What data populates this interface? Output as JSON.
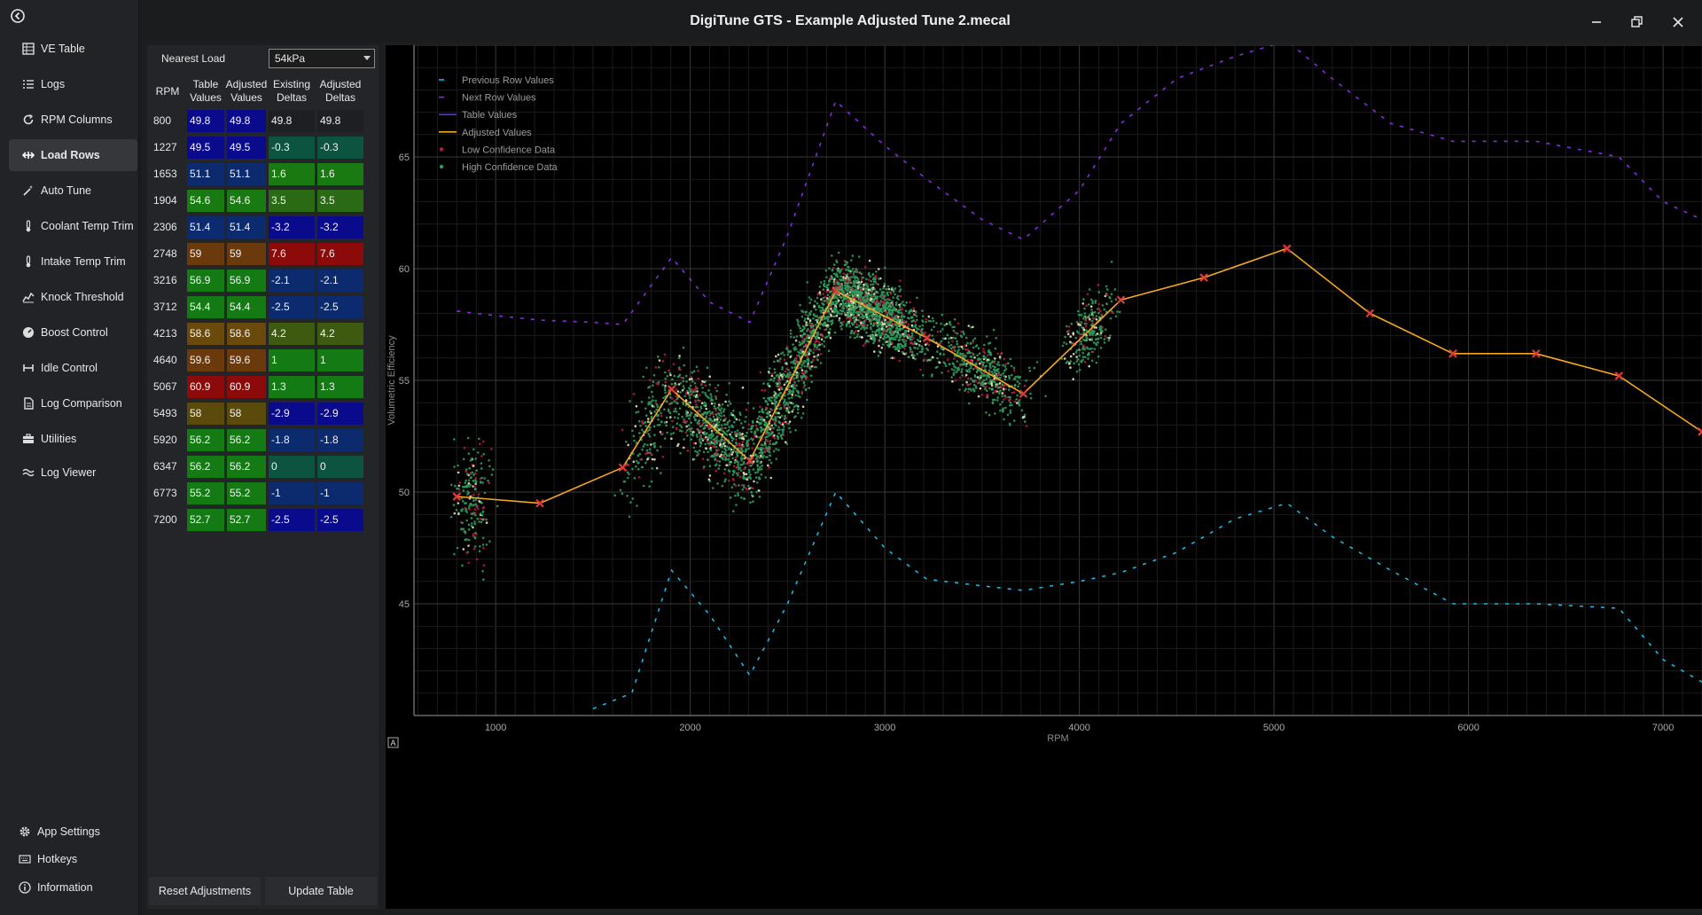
{
  "window": {
    "title": "DigiTune GTS - Example Adjusted Tune 2.mecal"
  },
  "sidebar": {
    "items": [
      {
        "label": "VE Table",
        "icon": "table-icon"
      },
      {
        "label": "Logs",
        "icon": "list-icon"
      },
      {
        "label": "RPM Columns",
        "icon": "refresh-icon"
      },
      {
        "label": "Load Rows",
        "icon": "arrows-horizontal-icon"
      },
      {
        "label": "Auto Tune",
        "icon": "magic-wand-icon"
      },
      {
        "label": "Coolant Temp Trim",
        "icon": "thermometer-icon"
      },
      {
        "label": "Intake Temp Trim",
        "icon": "thermometer-icon"
      },
      {
        "label": "Knock Threshold",
        "icon": "chart-line-icon"
      },
      {
        "label": "Boost Control",
        "icon": "gauge-icon"
      },
      {
        "label": "Idle Control",
        "icon": "idle-icon"
      },
      {
        "label": "Log Comparison",
        "icon": "document-icon"
      },
      {
        "label": "Utilities",
        "icon": "toolbox-icon"
      },
      {
        "label": "Log Viewer",
        "icon": "wave-icon"
      }
    ],
    "active": "Load Rows",
    "footer": [
      {
        "label": "App Settings",
        "icon": "gear-icon"
      },
      {
        "label": "Hotkeys",
        "icon": "keyboard-icon"
      },
      {
        "label": "Information",
        "icon": "info-icon"
      }
    ]
  },
  "panel": {
    "nearest_load_label": "Nearest Load",
    "nearest_load_value": "54kPa",
    "headers": [
      "RPM",
      "Table Values",
      "Adjusted Values",
      "Existing Deltas",
      "Adjusted Deltas"
    ],
    "rows": [
      {
        "rpm": "800",
        "table": "49.8",
        "adjusted": "49.8",
        "existing": "49.8",
        "adj_delta": "49.8"
      },
      {
        "rpm": "1227",
        "table": "49.5",
        "adjusted": "49.5",
        "existing": "-0.3",
        "adj_delta": "-0.3"
      },
      {
        "rpm": "1653",
        "table": "51.1",
        "adjusted": "51.1",
        "existing": "1.6",
        "adj_delta": "1.6"
      },
      {
        "rpm": "1904",
        "table": "54.6",
        "adjusted": "54.6",
        "existing": "3.5",
        "adj_delta": "3.5"
      },
      {
        "rpm": "2306",
        "table": "51.4",
        "adjusted": "51.4",
        "existing": "-3.2",
        "adj_delta": "-3.2"
      },
      {
        "rpm": "2748",
        "table": "59",
        "adjusted": "59",
        "existing": "7.6",
        "adj_delta": "7.6"
      },
      {
        "rpm": "3216",
        "table": "56.9",
        "adjusted": "56.9",
        "existing": "-2.1",
        "adj_delta": "-2.1"
      },
      {
        "rpm": "3712",
        "table": "54.4",
        "adjusted": "54.4",
        "existing": "-2.5",
        "adj_delta": "-2.5"
      },
      {
        "rpm": "4213",
        "table": "58.6",
        "adjusted": "58.6",
        "existing": "4.2",
        "adj_delta": "4.2"
      },
      {
        "rpm": "4640",
        "table": "59.6",
        "adjusted": "59.6",
        "existing": "1",
        "adj_delta": "1"
      },
      {
        "rpm": "5067",
        "table": "60.9",
        "adjusted": "60.9",
        "existing": "1.3",
        "adj_delta": "1.3"
      },
      {
        "rpm": "5493",
        "table": "58",
        "adjusted": "58",
        "existing": "-2.9",
        "adj_delta": "-2.9"
      },
      {
        "rpm": "5920",
        "table": "56.2",
        "adjusted": "56.2",
        "existing": "-1.8",
        "adj_delta": "-1.8"
      },
      {
        "rpm": "6347",
        "table": "56.2",
        "adjusted": "56.2",
        "existing": "0",
        "adj_delta": "0"
      },
      {
        "rpm": "6773",
        "table": "55.2",
        "adjusted": "55.2",
        "existing": "-1",
        "adj_delta": "-1"
      },
      {
        "rpm": "7200",
        "table": "52.7",
        "adjusted": "52.7",
        "existing": "-2.5",
        "adj_delta": "-2.5"
      }
    ],
    "value_colors": [
      "#0a0a8c",
      "#0a0a8c",
      "#0c2a6e",
      "#1a7a12",
      "#0c2a6e",
      "#6a3a0c",
      "#137a14",
      "#137a14",
      "#6a4a0c",
      "#6a3a0c",
      "#8c0a0a",
      "#5a4a0c",
      "#137a14",
      "#137a14",
      "#137a14",
      "#137a14"
    ],
    "delta_colors": [
      "#1e1f22",
      "#0d5440",
      "#1a7a12",
      "#2a6a14",
      "#0a0a8c",
      "#8c0a0a",
      "#0c2a6e",
      "#0c2a6e",
      "#3e5a10",
      "#137a14",
      "#137a14",
      "#0a0a8c",
      "#0c2a6e",
      "#0d5440",
      "#0c2a6e",
      "#0a0a8c"
    ],
    "reset_button": "Reset Adjustments",
    "update_button": "Update Table"
  },
  "chart_data": {
    "type": "scatter",
    "xlabel": "RPM",
    "ylabel": "Volumetric Efficiency",
    "xlim": [
      580,
      7200
    ],
    "ylim": [
      40,
      70
    ],
    "x_ticks": [
      1000,
      2000,
      3000,
      4000,
      5000,
      6000,
      7000
    ],
    "y_ticks": [
      45,
      50,
      55,
      60,
      65
    ],
    "grid": true,
    "legend_position": "top-left",
    "legend": [
      {
        "name": "Previous Row Values",
        "color": "#17b7e6",
        "style": "dashed"
      },
      {
        "name": "Next Row Values",
        "color": "#8a2be2",
        "style": "dashed"
      },
      {
        "name": "Table Values",
        "color": "#3e3edc",
        "style": "solid"
      },
      {
        "name": "Adjusted Values",
        "color": "#f4a820",
        "style": "solid"
      },
      {
        "name": "Low Confidence Data",
        "color": "#b8183e",
        "style": "dot"
      },
      {
        "name": "High Confidence Data",
        "color": "#2e9a5c",
        "style": "dot"
      }
    ],
    "series": [
      {
        "name": "Adjusted Values",
        "x": [
          800,
          1227,
          1653,
          1904,
          2306,
          2748,
          3216,
          3712,
          4213,
          4640,
          5067,
          5493,
          5920,
          6347,
          6773,
          7200
        ],
        "values": [
          49.8,
          49.5,
          51.1,
          54.6,
          51.4,
          59.0,
          56.9,
          54.4,
          58.6,
          59.6,
          60.9,
          58.0,
          56.2,
          56.2,
          55.2,
          52.7
        ]
      },
      {
        "name": "Previous Row Values",
        "x": [
          1500,
          1700,
          1904,
          2100,
          2306,
          2500,
          2748,
          3000,
          3216,
          3500,
          3712,
          4000,
          4213,
          4500,
          4800,
          5067,
          5300,
          5600,
          5920,
          6347,
          6773,
          7000,
          7200
        ],
        "values": [
          40.3,
          41.0,
          46.5,
          44.5,
          41.8,
          45.0,
          50.0,
          47.5,
          46.1,
          45.8,
          45.6,
          46.0,
          46.4,
          47.3,
          48.8,
          49.5,
          48.0,
          46.5,
          45.0,
          45.0,
          44.8,
          42.5,
          41.5
        ]
      },
      {
        "name": "Next Row Values",
        "x": [
          800,
          1000,
          1227,
          1500,
          1653,
          1904,
          2100,
          2306,
          2500,
          2748,
          3000,
          3216,
          3500,
          3712,
          4000,
          4213,
          4500,
          4800,
          5067,
          5300,
          5600,
          5920,
          6347,
          6773,
          7000,
          7200
        ],
        "values": [
          58.1,
          57.9,
          57.7,
          57.6,
          57.5,
          60.5,
          58.5,
          57.6,
          61.5,
          67.5,
          65.5,
          64.0,
          62.2,
          61.3,
          63.5,
          66.5,
          68.5,
          69.5,
          70.2,
          68.5,
          66.5,
          65.7,
          65.7,
          65.0,
          63.0,
          62.2
        ]
      }
    ]
  }
}
